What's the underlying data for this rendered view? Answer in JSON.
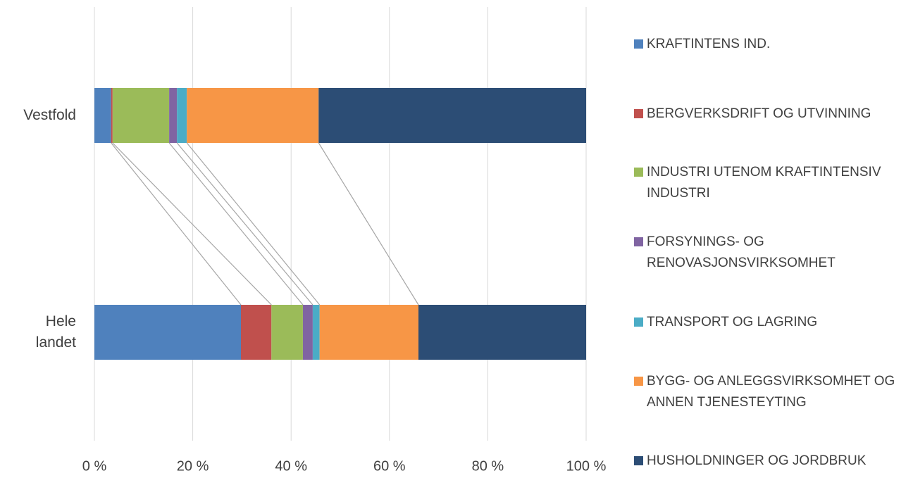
{
  "chart_data": {
    "type": "stacked-bar-100",
    "categories": [
      "Vestfold",
      "Hele landet"
    ],
    "series": [
      {
        "name": "KRAFTINTENS IND.",
        "color": "#4f81bd",
        "values": [
          3.4,
          29.8
        ]
      },
      {
        "name": "BERGVERKSDRIFT OG UTVINNING",
        "color": "#c0504d",
        "values": [
          0.3,
          6.2
        ]
      },
      {
        "name": "INDUSTRI UTENOM KRAFTINTENSIV INDUSTRI",
        "color": "#9bbb59",
        "values": [
          11.5,
          6.4
        ]
      },
      {
        "name": "FORSYNINGS- OG RENOVASJONSVIRKSOMHET",
        "color": "#8064a2",
        "values": [
          1.6,
          2.0
        ]
      },
      {
        "name": "TRANSPORT OG LAGRING",
        "color": "#4bacc6",
        "values": [
          2.0,
          1.4
        ]
      },
      {
        "name": "BYGG- OG ANLEGGSVIRKSOMHET OG ANNEN TJENESTEYTING",
        "color": "#f79646",
        "values": [
          26.8,
          20.1
        ]
      },
      {
        "name": "HUSHOLDNINGER OG JORDBRUK",
        "color": "#2c4d75",
        "values": [
          54.4,
          34.1
        ]
      }
    ],
    "xlim": [
      0,
      100
    ],
    "xticks": [
      {
        "value": 0,
        "label": "0 %"
      },
      {
        "value": 20,
        "label": "20 %"
      },
      {
        "value": 40,
        "label": "40 %"
      },
      {
        "value": 60,
        "label": "60 %"
      },
      {
        "value": 80,
        "label": "80 %"
      },
      {
        "value": 100,
        "label": "100 %"
      }
    ],
    "grid": true,
    "series_lines": true,
    "legend": "right"
  }
}
